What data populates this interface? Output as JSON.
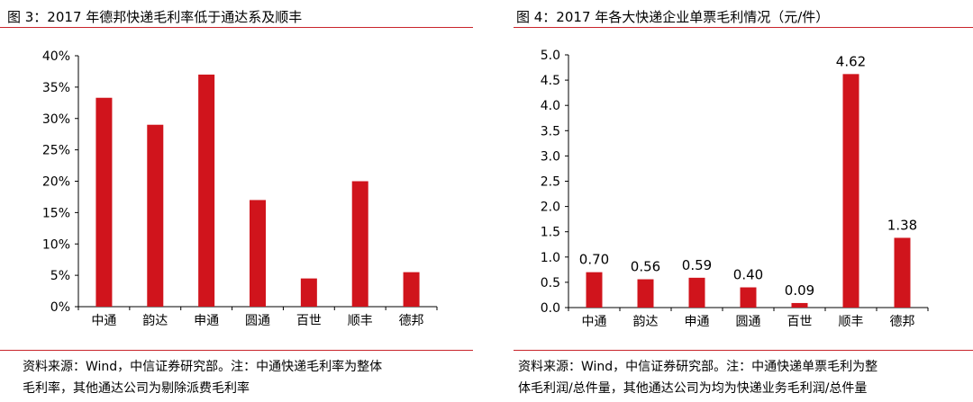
{
  "left": {
    "title": "图 3：2017 年德邦快递毛利率低于通达系及顺丰",
    "source_line1": "资料来源：Wind，中信证券研究部。注：中通快递毛利率为整体",
    "source_line2": "毛利率，其他通达公司为剔除派费毛利率"
  },
  "right": {
    "title": "图 4：2017 年各大快递企业单票毛利情况（元/件）",
    "source_line1": "资料来源：Wind，中信证券研究部。注：中通快递单票毛利为整",
    "source_line2": "体毛利润/总件量，其他通达公司为均为快递业务毛利润/总件量"
  },
  "chart_data": [
    {
      "type": "bar",
      "title": "图 3：2017 年德邦快递毛利率低于通达系及顺丰",
      "categories": [
        "中通",
        "韵达",
        "申通",
        "圆通",
        "百世",
        "顺丰",
        "德邦"
      ],
      "values": [
        0.333,
        0.29,
        0.37,
        0.17,
        0.045,
        0.2,
        0.055
      ],
      "ylim": [
        0,
        0.4
      ],
      "yticks": [
        0,
        0.05,
        0.1,
        0.15,
        0.2,
        0.25,
        0.3,
        0.35,
        0.4
      ],
      "ytick_labels": [
        "0%",
        "5%",
        "10%",
        "15%",
        "20%",
        "25%",
        "30%",
        "35%",
        "40%"
      ],
      "data_labels": [],
      "grid": false,
      "bar_color": "#d0141c"
    },
    {
      "type": "bar",
      "title": "图 4：2017 年各大快递企业单票毛利情况（元/件）",
      "categories": [
        "中通",
        "韵达",
        "申通",
        "圆通",
        "百世",
        "顺丰",
        "德邦"
      ],
      "values": [
        0.7,
        0.56,
        0.59,
        0.4,
        0.09,
        4.62,
        1.38
      ],
      "ylim": [
        0,
        5.0
      ],
      "yticks": [
        0,
        0.5,
        1.0,
        1.5,
        2.0,
        2.5,
        3.0,
        3.5,
        4.0,
        4.5,
        5.0
      ],
      "ytick_labels": [
        "0.0",
        "0.5",
        "1.0",
        "1.5",
        "2.0",
        "2.5",
        "3.0",
        "3.5",
        "4.0",
        "4.5",
        "5.0"
      ],
      "data_labels": [
        "0.70",
        "0.56",
        "0.59",
        "0.40",
        "0.09",
        "4.62",
        "1.38"
      ],
      "grid": false,
      "bar_color": "#d0141c"
    }
  ]
}
